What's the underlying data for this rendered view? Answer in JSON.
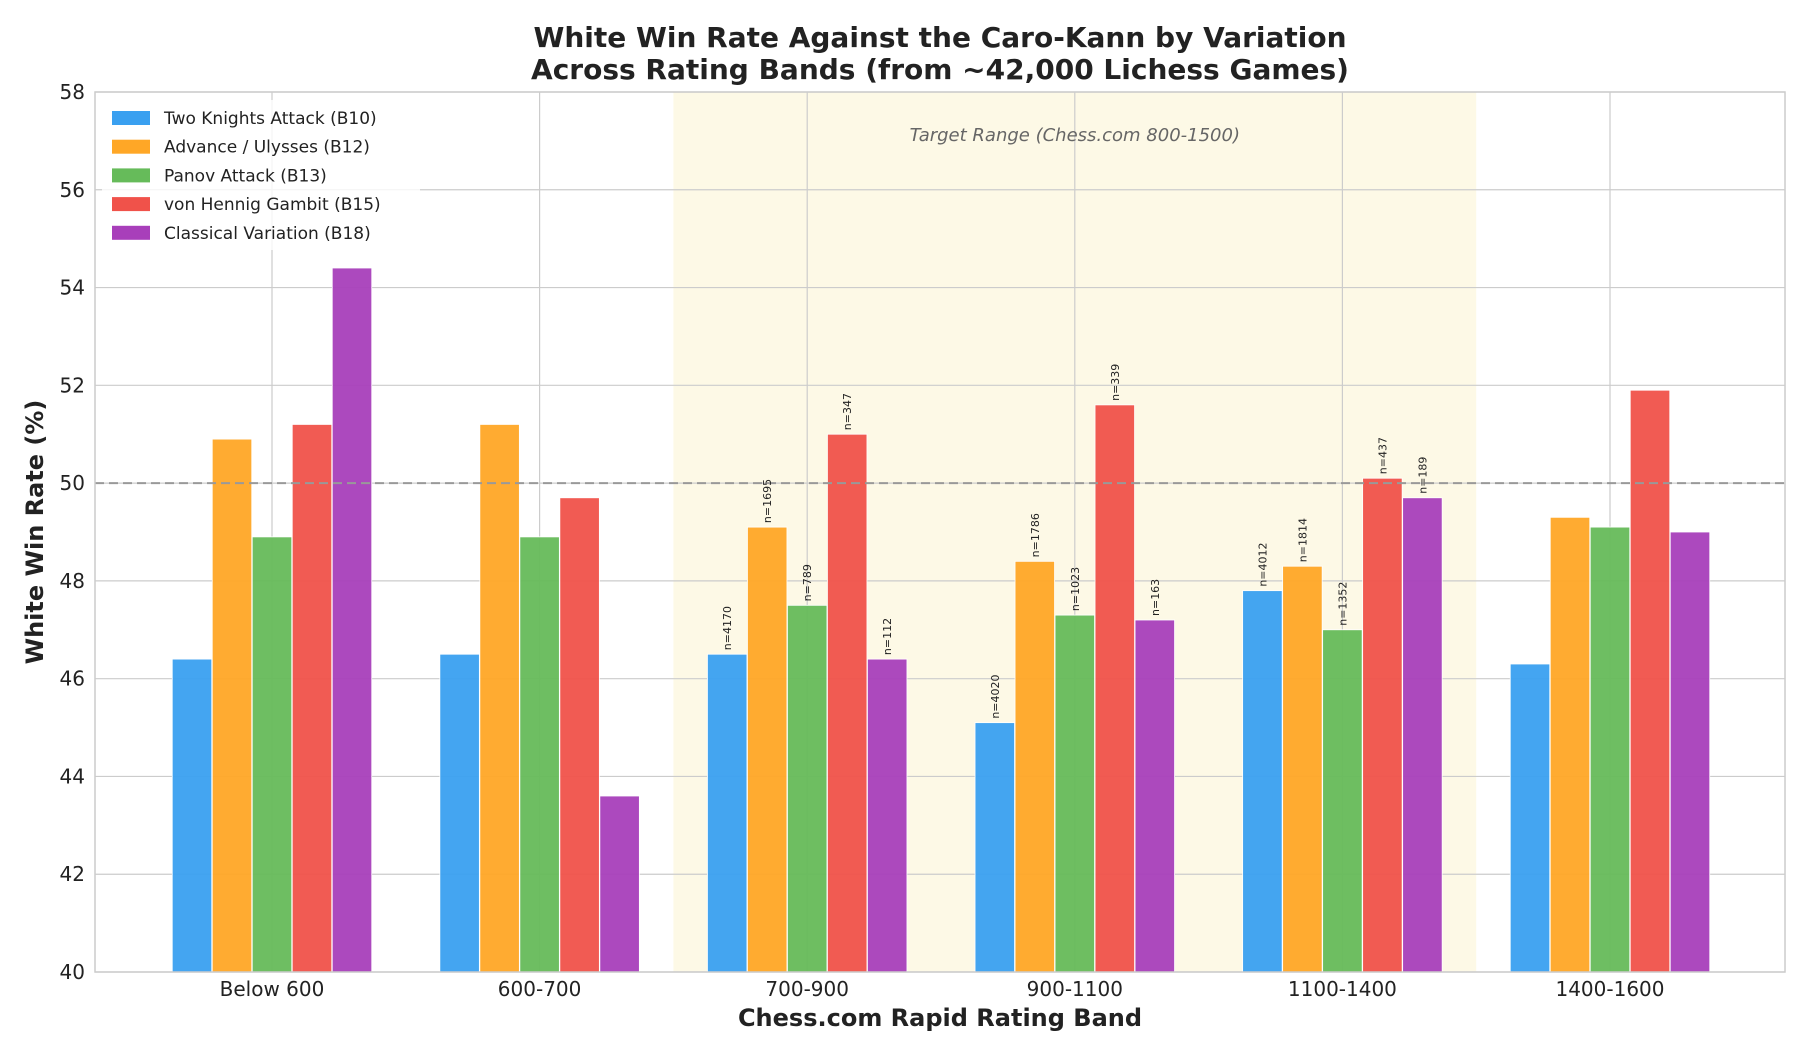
{
  "chart_data": {
    "type": "bar",
    "title_lines": [
      "White Win Rate Against the Caro-Kann by Variation",
      "Across Rating Bands (from ~42,000 Lichess Games)"
    ],
    "xlabel": "Chess.com Rapid Rating Band",
    "ylabel": "White Win Rate (%)",
    "ylim": [
      40,
      58
    ],
    "yticks": [
      "40",
      "42",
      "44",
      "46",
      "48",
      "50",
      "52",
      "54",
      "56",
      "58"
    ],
    "grid": true,
    "legend_position": "top-left",
    "reference_line": {
      "y": 50,
      "style": "dashed",
      "color": "#999999"
    },
    "highlight_region": {
      "from_category": "700-900",
      "to_category": "1100-1400",
      "label": "Target Range (Chess.com 800-1500)",
      "color": "#fdf9e6"
    },
    "categories": [
      "Below 600",
      "600-700",
      "700-900",
      "900-1100",
      "1100-1400",
      "1400-1600"
    ],
    "series": [
      {
        "name": "Two Knights Attack (B10)",
        "color": "#3aa0f0",
        "values": [
          46.4,
          46.5,
          46.5,
          45.1,
          47.8,
          46.3
        ],
        "n_labels": [
          null,
          null,
          "n=4170",
          "n=4020",
          "n=4012",
          null
        ]
      },
      {
        "name": "Advance / Ulysses (B12)",
        "color": "#ffa726",
        "values": [
          50.9,
          51.2,
          49.1,
          48.4,
          48.3,
          49.3
        ],
        "n_labels": [
          null,
          null,
          "n=1695",
          "n=1786",
          "n=1814",
          null
        ]
      },
      {
        "name": "Panov Attack (B13)",
        "color": "#66bb5a",
        "values": [
          48.9,
          48.9,
          47.5,
          47.3,
          47.0,
          49.1
        ],
        "n_labels": [
          null,
          null,
          "n=789",
          "n=1023",
          "n=1352",
          null
        ]
      },
      {
        "name": "von Hennig Gambit (B15)",
        "color": "#f0524a",
        "values": [
          51.2,
          49.7,
          51.0,
          51.6,
          50.1,
          51.9
        ],
        "n_labels": [
          null,
          null,
          "n=347",
          "n=339",
          "n=437",
          null
        ]
      },
      {
        "name": "Classical Variation (B18)",
        "color": "#a83fba",
        "values": [
          54.4,
          43.6,
          46.4,
          47.2,
          49.7,
          49.0
        ],
        "n_labels": [
          null,
          null,
          "n=112",
          "n=163",
          "n=189",
          null
        ]
      }
    ]
  }
}
